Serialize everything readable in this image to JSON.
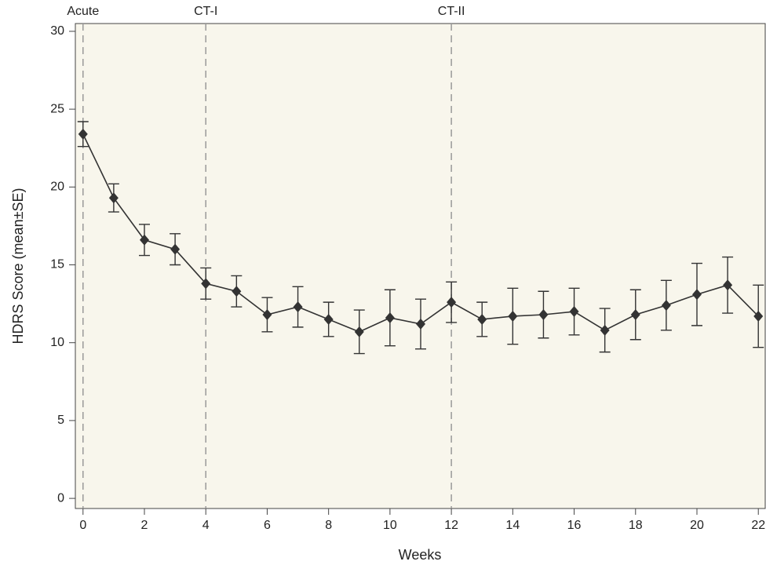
{
  "chart_data": {
    "type": "line",
    "x_label": "Weeks",
    "y_label": "HDRS Score (mean±SE)",
    "x": [
      0,
      1,
      2,
      3,
      4,
      5,
      6,
      7,
      8,
      9,
      10,
      11,
      12,
      13,
      14,
      15,
      16,
      17,
      18,
      19,
      20,
      21,
      22
    ],
    "series": [
      {
        "color": "#333333",
        "values": [
          23.4,
          19.3,
          16.6,
          16.0,
          13.8,
          13.3,
          11.8,
          12.3,
          11.5,
          10.7,
          11.6,
          11.2,
          12.6,
          11.5,
          11.7,
          11.8,
          12.0,
          10.8,
          11.8,
          12.4,
          13.1,
          13.7,
          11.7
        ],
        "errors": [
          0.8,
          0.9,
          1.0,
          1.0,
          1.0,
          1.0,
          1.1,
          1.3,
          1.1,
          1.4,
          1.8,
          1.6,
          1.3,
          1.1,
          1.8,
          1.5,
          1.5,
          1.4,
          1.6,
          1.6,
          2.0,
          1.8,
          2.0
        ]
      }
    ],
    "annotations": [
      {
        "x": 0,
        "label": "Acute"
      },
      {
        "x": 4,
        "label": "CT-I"
      },
      {
        "x": 12,
        "label": "CT-II"
      }
    ],
    "xlim": [
      -0.25,
      22.25
    ],
    "ylim": [
      -0.65,
      30.5
    ],
    "xticks": [
      0,
      2,
      4,
      6,
      8,
      10,
      12,
      14,
      16,
      18,
      20,
      22
    ],
    "yticks": [
      0,
      5,
      10,
      15,
      20,
      25,
      30
    ]
  }
}
